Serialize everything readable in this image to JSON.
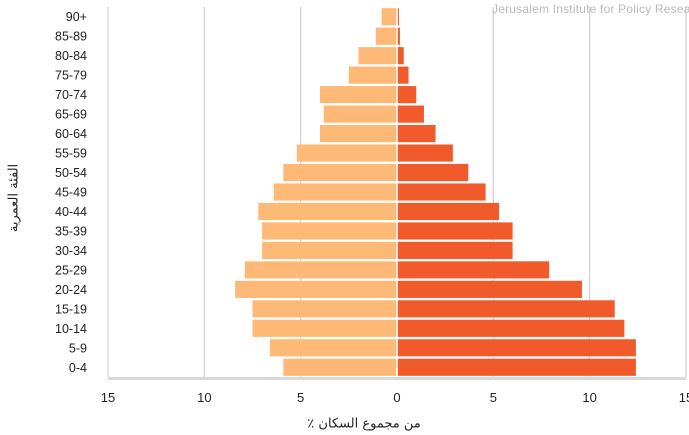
{
  "chart_data": {
    "type": "bar",
    "orientation": "horizontal",
    "title": "",
    "xlabel": "٪ من مجموع السكان",
    "ylabel": "الفئة العمرية",
    "categories": [
      "0-4",
      "5-9",
      "10-14",
      "15-19",
      "20-24",
      "25-29",
      "30-34",
      "35-39",
      "40-44",
      "45-49",
      "50-54",
      "55-59",
      "60-64",
      "65-69",
      "70-74",
      "75-79",
      "80-84",
      "85-89",
      "90+"
    ],
    "series": [
      {
        "side": "left",
        "color": "#FDB975",
        "values": [
          5.9,
          6.6,
          7.5,
          7.5,
          8.4,
          7.9,
          7.0,
          7.0,
          7.2,
          6.4,
          5.9,
          5.2,
          4.0,
          3.8,
          4.0,
          2.5,
          2.0,
          1.1,
          0.8
        ]
      },
      {
        "side": "right",
        "color": "#F15A2A",
        "values": [
          12.4,
          12.4,
          11.8,
          11.3,
          9.6,
          7.9,
          6.0,
          6.0,
          5.3,
          4.6,
          3.7,
          2.9,
          2.0,
          1.4,
          1.0,
          0.6,
          0.35,
          0.15,
          0.1
        ]
      }
    ],
    "xlim": [
      -15,
      15
    ],
    "xticks": [
      -15,
      -10,
      -5,
      0,
      5,
      10,
      15
    ],
    "xtick_labels": [
      "15",
      "10",
      "5",
      "0",
      "5",
      "10",
      "15"
    ],
    "grid": "vertical",
    "legend": "none"
  },
  "watermark": "Jerusalem Institute for Policy Research",
  "colors": {
    "grid": "#cfcfcf",
    "axis": "#d9d9d9",
    "text": "#222222"
  }
}
